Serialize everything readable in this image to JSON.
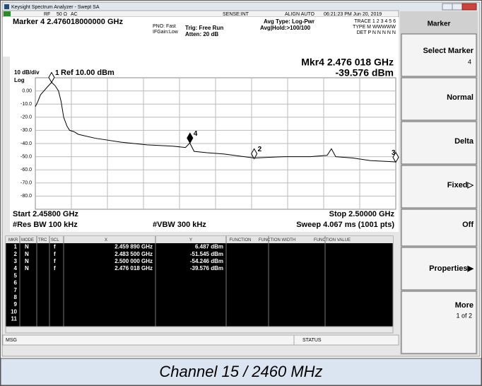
{
  "window": {
    "title": "Keysight Spectrum Analyzer - Swept SA",
    "rf": "RF",
    "impedance": "50 Ω",
    "coupling": "AC",
    "sense": "SENSE:INT",
    "align": "ALIGN AUTO",
    "datetime": "06:21:23 PM Jun 20, 2019"
  },
  "header": {
    "marker": "Marker 4 2.476018000000 GHz",
    "pno": "PNO: Fast",
    "ifgain": "IFGain:Low",
    "trig": "Trig: Free Run",
    "atten": "Atten: 20 dB",
    "avg_type": "Avg Type: Log-Pwr",
    "avg_hold": "Avg|Hold:>100/100",
    "trace": "TRACE 1 2 3 4 5 6",
    "type": "TYPE M WWWWW",
    "det": "DET P N N N N N"
  },
  "readout": {
    "freq": "Mkr4 2.476 018 GHz",
    "level": "-39.576 dBm"
  },
  "spectrum": {
    "type": "line",
    "scale": "10 dB/div",
    "ref": "Ref 10.00 dBm",
    "log": "Log",
    "start": "Start 2.45800 GHz",
    "stop": "Stop 2.50000 GHz",
    "rbw": "#Res BW 100 kHz",
    "vbw": "#VBW 300 kHz",
    "sweep": "Sweep 4.067 ms (1001 pts)",
    "xlim": [
      2.458,
      2.5
    ],
    "ylim": [
      -90,
      10
    ],
    "yticks": [
      {
        "value": 0,
        "label": "0.00"
      },
      {
        "value": -10,
        "label": "-10.0"
      },
      {
        "value": -20,
        "label": "-20.0"
      },
      {
        "value": -30,
        "label": "-30.0"
      },
      {
        "value": -40,
        "label": "-40.0"
      },
      {
        "value": -50,
        "label": "-50.0"
      },
      {
        "value": -60,
        "label": "-60.0"
      },
      {
        "value": -70,
        "label": "-70.0"
      },
      {
        "value": -80,
        "label": "-80.0"
      }
    ],
    "grid": true,
    "color": "#000000",
    "trace": {
      "x": [
        2.458,
        2.4583,
        2.4586,
        2.459,
        2.4594,
        2.4599,
        2.4603,
        2.4607,
        2.461,
        2.4613,
        2.4617,
        2.462,
        2.4625,
        2.463,
        2.465,
        2.468,
        2.471,
        2.474,
        2.4755,
        2.476,
        2.4765,
        2.478,
        2.48,
        2.4835,
        2.487,
        2.49,
        2.492,
        2.4925,
        2.493,
        2.495,
        2.497,
        2.5
      ],
      "values": [
        -12,
        -8,
        -3,
        0,
        3,
        6.5,
        4,
        0,
        -8,
        -20,
        -27,
        -30,
        -31,
        -33,
        -36,
        -39,
        -41,
        -42,
        -43,
        -39.6,
        -46,
        -47,
        -48,
        -51,
        -50,
        -50,
        -49,
        -44,
        -50,
        -51,
        -53,
        -54
      ]
    },
    "markers": [
      {
        "label": "1",
        "x": 2.45989,
        "y": 6.487
      },
      {
        "label": "2",
        "x": 2.4835,
        "y": -51.545
      },
      {
        "label": "3",
        "x": 2.5,
        "y": -54.246
      },
      {
        "label": "4",
        "x": 2.476018,
        "y": -39.576
      }
    ]
  },
  "marker_table": {
    "columns": [
      "MKR",
      "MODE",
      "TRC",
      "SCL",
      "X",
      "Y",
      "FUNCTION",
      "FUNCTION WIDTH",
      "FUNCTION VALUE"
    ],
    "rows": [
      {
        "mkr": "1",
        "mode": "N",
        "scl": "f",
        "x": "2.459 890 GHz",
        "y": "6.487 dBm"
      },
      {
        "mkr": "2",
        "mode": "N",
        "scl": "f",
        "x": "2.483 500 GHz",
        "y": "-51.545 dBm"
      },
      {
        "mkr": "3",
        "mode": "N",
        "scl": "f",
        "x": "2.500 000 GHz",
        "y": "-54.246 dBm"
      },
      {
        "mkr": "4",
        "mode": "N",
        "scl": "f",
        "x": "2.476 018 GHz",
        "y": "-39.576 dBm"
      },
      {
        "mkr": "5"
      },
      {
        "mkr": "6"
      },
      {
        "mkr": "7"
      },
      {
        "mkr": "8"
      },
      {
        "mkr": "9"
      },
      {
        "mkr": "10"
      },
      {
        "mkr": "11"
      }
    ]
  },
  "status": {
    "msg": "MSG",
    "status": "STATUS"
  },
  "softkeys": {
    "menu": "Marker",
    "select": "Select Marker",
    "select_value": "4",
    "normal": "Normal",
    "delta": "Delta",
    "fixed": "Fixed▷",
    "off": "Off",
    "properties": "Properties▶",
    "more": "More",
    "page": "1 of 2"
  },
  "caption": "Channel 15 / 2460 MHz"
}
